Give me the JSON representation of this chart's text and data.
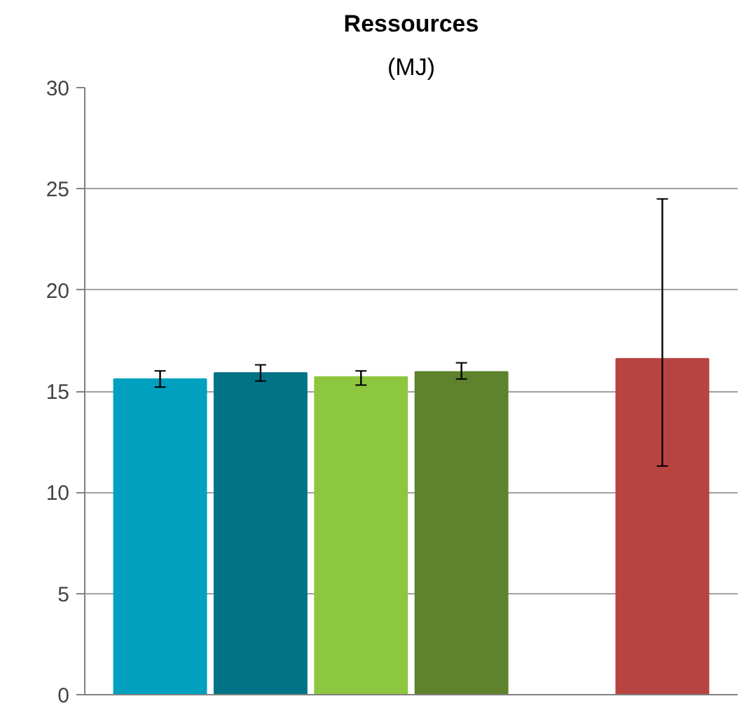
{
  "chart_data": {
    "type": "bar",
    "title": "Ressources",
    "subtitle": "(MJ)",
    "categories": [
      null,
      null,
      null,
      null,
      null,
      null
    ],
    "values": [
      15.6,
      15.9,
      15.7,
      15.95,
      null,
      16.6
    ],
    "colors": [
      "#00a0be",
      "#007387",
      "#8dc63f",
      "#5e832c",
      "#ffffff",
      "#b84441"
    ],
    "errors": [
      [
        15.2,
        16.0
      ],
      [
        15.5,
        16.3
      ],
      [
        15.3,
        16.0
      ],
      [
        15.6,
        16.4
      ],
      null,
      [
        11.3,
        24.5
      ]
    ],
    "ylim": [
      0,
      30
    ],
    "yticks": [
      0,
      5,
      10,
      15,
      20,
      25,
      30
    ],
    "grid": "y"
  }
}
